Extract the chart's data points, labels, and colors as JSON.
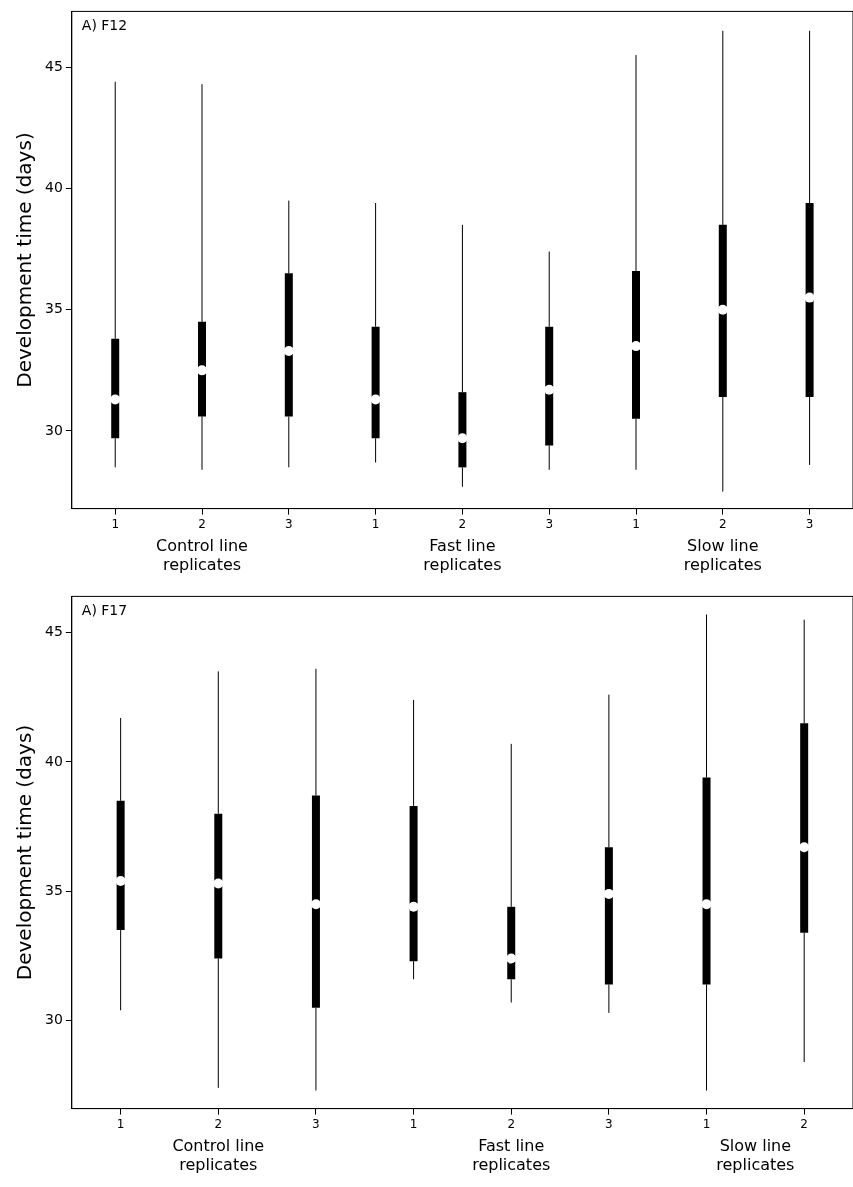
{
  "chart_data": [
    {
      "type": "box",
      "title": "A) F12",
      "ylabel": "Development time (days)",
      "categories": [
        "1",
        "2",
        "3",
        "1",
        "2",
        "3",
        "1",
        "2",
        "3"
      ],
      "ylim": [
        26.8,
        47.3
      ],
      "yticks": [
        30,
        35,
        40,
        45
      ],
      "grid": false,
      "legend": false,
      "annotations": [
        "Control line replicates",
        "Fast line replicates",
        "Slow line replicates"
      ],
      "series": [
        {
          "color": "#000000",
          "boxes": [
            {
              "low": 28.5,
              "q1": 29.7,
              "median": 31.3,
              "q3": 33.8,
              "high": 44.4
            },
            {
              "low": 28.4,
              "q1": 30.6,
              "median": 32.5,
              "q3": 34.5,
              "high": 44.3
            },
            {
              "low": 28.5,
              "q1": 30.6,
              "median": 33.3,
              "q3": 36.5,
              "high": 39.5
            },
            {
              "low": 28.7,
              "q1": 29.7,
              "median": 31.3,
              "q3": 34.3,
              "high": 39.4
            },
            {
              "low": 27.7,
              "q1": 28.5,
              "median": 29.7,
              "q3": 31.6,
              "high": 38.5
            },
            {
              "low": 28.4,
              "q1": 29.4,
              "median": 31.7,
              "q3": 34.3,
              "high": 37.4
            },
            {
              "low": 28.4,
              "q1": 30.5,
              "median": 33.5,
              "q3": 36.6,
              "high": 45.5
            },
            {
              "low": 27.5,
              "q1": 31.4,
              "median": 35.0,
              "q3": 38.5,
              "high": 46.5
            },
            {
              "low": 28.6,
              "q1": 31.4,
              "median": 35.5,
              "q3": 39.4,
              "high": 46.5
            }
          ]
        }
      ]
    },
    {
      "type": "box",
      "title": "A) F17",
      "ylabel": "Development time (days)",
      "categories": [
        "1",
        "2",
        "3",
        "1",
        "2",
        "3",
        "1",
        "2"
      ],
      "ylim": [
        26.6,
        46.4
      ],
      "yticks": [
        30,
        35,
        40,
        45
      ],
      "grid": false,
      "legend": false,
      "annotations": [
        "Control line replicates",
        "Fast line replicates",
        "Slow line replicates"
      ],
      "series": [
        {
          "color": "#000000",
          "boxes": [
            {
              "low": 30.4,
              "q1": 33.5,
              "median": 35.4,
              "q3": 38.5,
              "high": 41.7
            },
            {
              "low": 27.4,
              "q1": 32.4,
              "median": 35.3,
              "q3": 38.0,
              "high": 43.5
            },
            {
              "low": 27.3,
              "q1": 30.5,
              "median": 34.5,
              "q3": 38.7,
              "high": 43.6
            },
            {
              "low": 31.6,
              "q1": 32.3,
              "median": 34.4,
              "q3": 38.3,
              "high": 42.4
            },
            {
              "low": 30.7,
              "q1": 31.6,
              "median": 32.4,
              "q3": 34.4,
              "high": 40.7
            },
            {
              "low": 30.3,
              "q1": 31.4,
              "median": 34.9,
              "q3": 36.7,
              "high": 42.6
            },
            {
              "low": 27.3,
              "q1": 31.4,
              "median": 34.5,
              "q3": 39.4,
              "high": 45.7
            },
            {
              "low": 28.4,
              "q1": 33.4,
              "median": 36.7,
              "q3": 41.5,
              "high": 45.5
            }
          ]
        }
      ]
    }
  ]
}
